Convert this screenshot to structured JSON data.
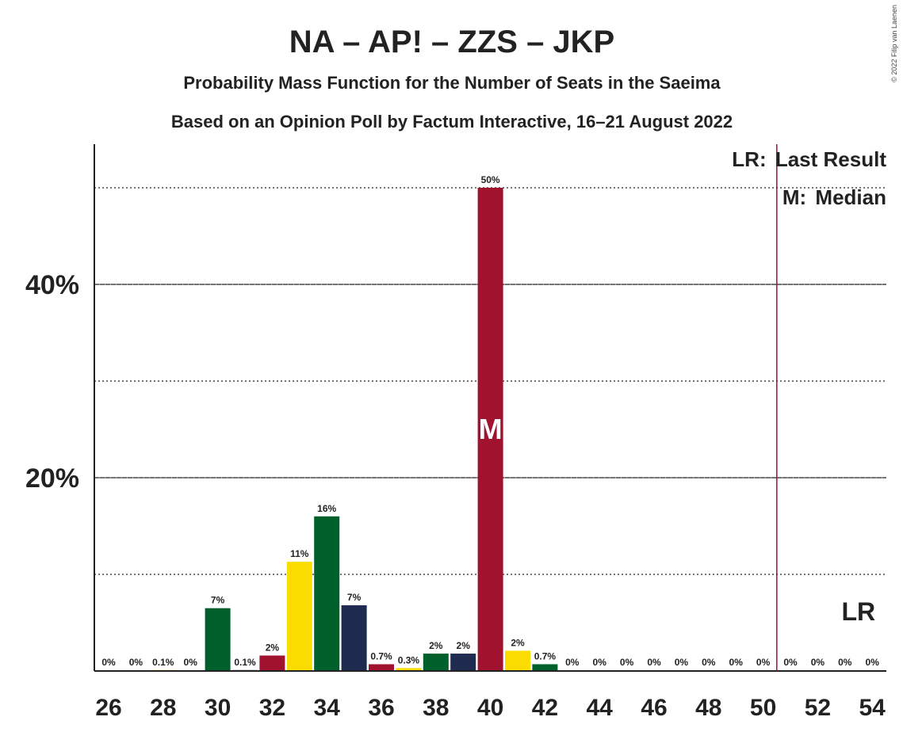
{
  "chart_data": {
    "type": "bar",
    "title": "NA – AP! – ZZS – JKP",
    "subtitle": "Probability Mass Function for the Number of Seats in the Saeima",
    "subtitle2": "Based on an Opinion Poll by Factum Interactive, 16–21 August 2022",
    "copyright": "© 2022 Filip van Laenen",
    "x": [
      26,
      27,
      28,
      29,
      30,
      31,
      32,
      33,
      34,
      35,
      36,
      37,
      38,
      39,
      40,
      41,
      42,
      43,
      44,
      45,
      46,
      47,
      48,
      49,
      50,
      51,
      52,
      53,
      54
    ],
    "values": [
      0,
      0,
      0.1,
      0,
      6.5,
      0.1,
      1.6,
      11.3,
      16,
      6.8,
      0.7,
      0.3,
      1.8,
      1.8,
      50,
      2.1,
      0.7,
      0,
      0,
      0,
      0,
      0,
      0,
      0,
      0,
      0,
      0,
      0,
      0
    ],
    "data_labels": [
      "0%",
      "0%",
      "0.1%",
      "0%",
      "7%",
      "0.1%",
      "2%",
      "11%",
      "16%",
      "7%",
      "0.7%",
      "0.3%",
      "2%",
      "2%",
      "50%",
      "2%",
      "0.7%",
      "0%",
      "0%",
      "0%",
      "0%",
      "0%",
      "0%",
      "0%",
      "0%",
      "0%",
      "0%",
      "0%",
      "0%"
    ],
    "bar_colors": [
      "#1f2a50",
      "#a0122e",
      "#fadc00",
      "#00602b",
      "#00602b",
      "#1f2a50",
      "#a0122e",
      "#fadc00",
      "#00602b",
      "#1f2a50",
      "#a0122e",
      "#fadc00",
      "#00602b",
      "#1f2a50",
      "#a0122e",
      "#fadc00",
      "#00602b",
      "#1f2a50",
      "#a0122e",
      "#fadc00",
      "#00602b",
      "#1f2a50",
      "#a0122e",
      "#fadc00",
      "#00602b",
      "#1f2a50",
      "#a0122e",
      "#fadc00",
      "#00602b"
    ],
    "x_ticks": [
      26,
      28,
      30,
      32,
      34,
      36,
      38,
      40,
      42,
      44,
      46,
      48,
      50,
      52,
      54
    ],
    "y_ticks": [
      {
        "value": 20,
        "label": "20%"
      },
      {
        "value": 40,
        "label": "40%"
      }
    ],
    "minor_gridlines": [
      10,
      30,
      50
    ],
    "ylim": [
      0,
      54.5
    ],
    "median": {
      "seat": 40,
      "marker": "M"
    },
    "last_result": {
      "seat": 50.5,
      "marker": "LR",
      "marker_seat": 53
    },
    "legend": [
      {
        "key": "LR:",
        "text": "Last Result"
      },
      {
        "key": "M:",
        "text": "Median"
      }
    ],
    "colors": {
      "line": "#a0122e",
      "text": "#222222"
    }
  }
}
